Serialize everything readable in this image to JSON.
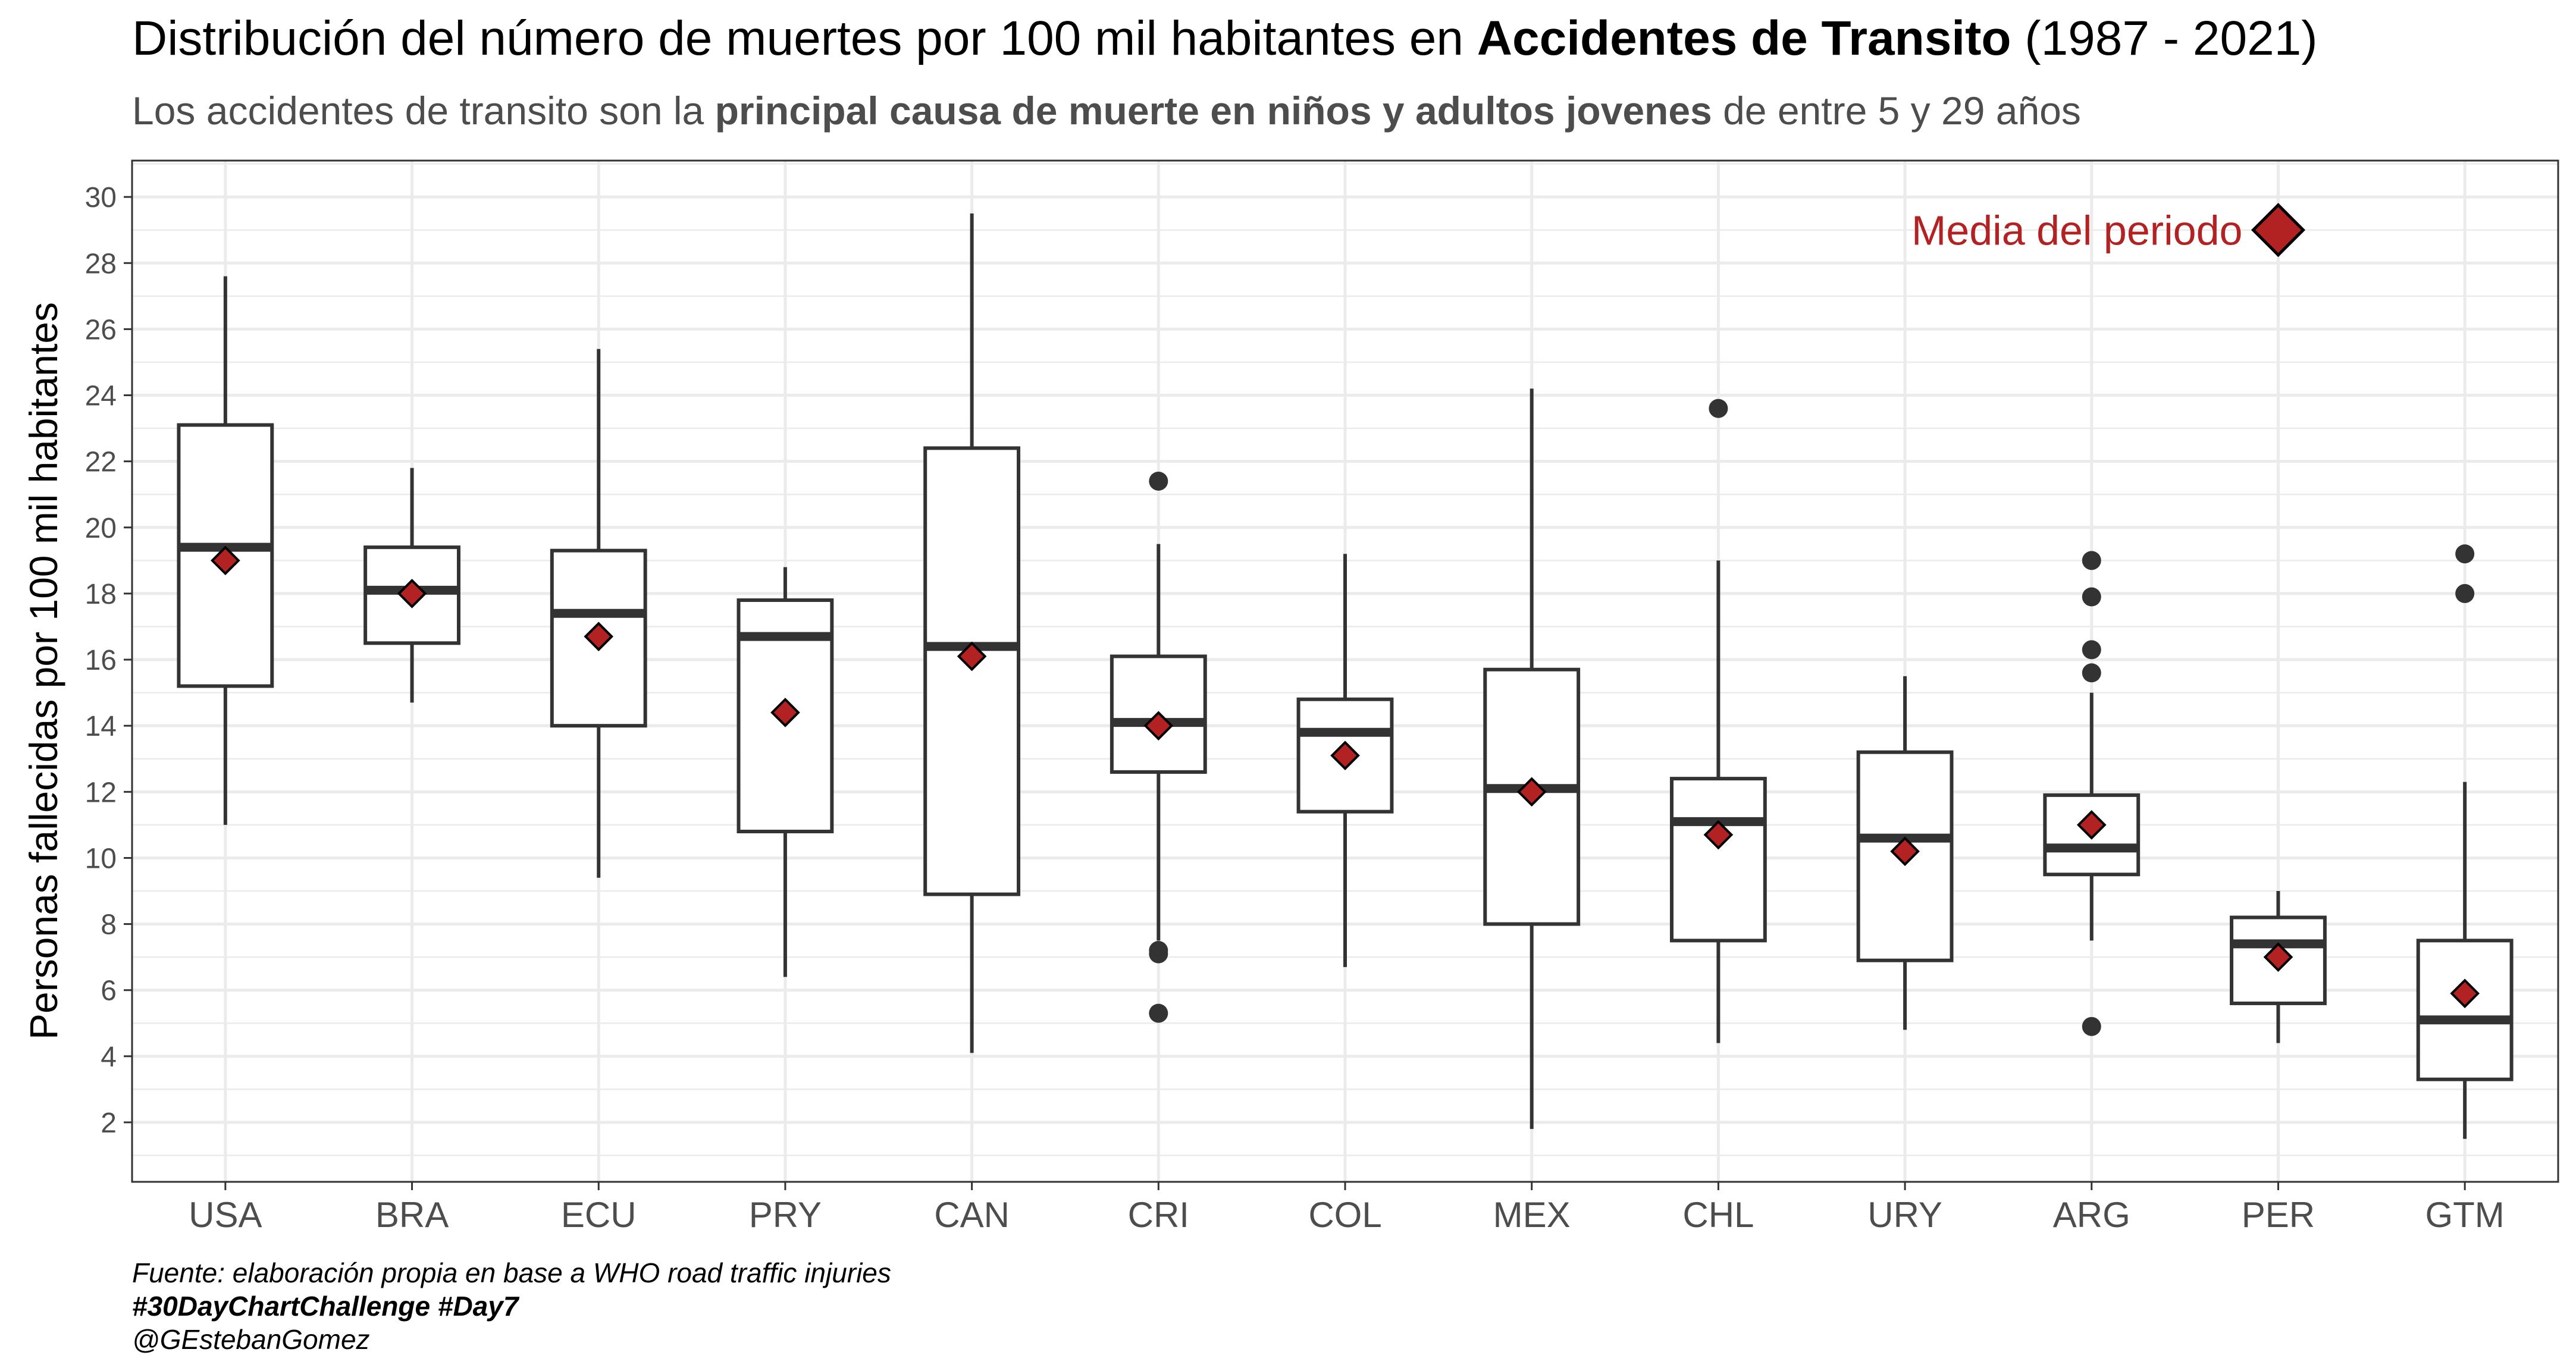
{
  "title_parts": {
    "prefix": "Distribución del número de muertes por 100 mil habitantes en ",
    "bold": "Accidentes de Transito",
    "suffix": " (1987 - 2021)"
  },
  "subtitle_parts": {
    "prefix": "Los accidentes de transito son la ",
    "bold": "principal causa de muerte en niños y adultos jovenes",
    "suffix": " de entre 5 y 29 años"
  },
  "caption": {
    "source": "Fuente: elaboración propia en base a WHO road traffic injuries",
    "tag": "#30DayChartChallenge #Day7",
    "author": "@GEstebanGomez"
  },
  "colors": {
    "mean_marker": "#b22222",
    "box_line": "#333333",
    "grid": "#ebebeb"
  },
  "chart_data": {
    "type": "boxplot",
    "title": "Distribución del número de muertes por 100 mil habitantes en Accidentes de Transito (1987 - 2021)",
    "subtitle": "Los accidentes de transito son la principal causa de muerte en niños y adultos jovenes de entre 5 y 29 años",
    "xlabel": "",
    "ylabel": "Personas fallecidas por 100 mil habitantes",
    "ylim": [
      0.2,
      31.1
    ],
    "yticks": [
      2,
      4,
      6,
      8,
      10,
      12,
      14,
      16,
      18,
      20,
      22,
      24,
      26,
      28,
      30
    ],
    "grid": true,
    "annotation": {
      "text": "Media del periodo",
      "x": "PER",
      "y": 29.0
    },
    "categories": [
      "USA",
      "BRA",
      "ECU",
      "PRY",
      "CAN",
      "CRI",
      "COL",
      "MEX",
      "CHL",
      "URY",
      "ARG",
      "PER",
      "GTM"
    ],
    "boxes": [
      {
        "name": "USA",
        "min": 11.0,
        "q1": 15.2,
        "median": 19.4,
        "q3": 23.1,
        "max": 27.6,
        "mean": 19.0,
        "outliers": []
      },
      {
        "name": "BRA",
        "min": 14.7,
        "q1": 16.5,
        "median": 18.1,
        "q3": 19.4,
        "max": 21.8,
        "mean": 18.0,
        "outliers": []
      },
      {
        "name": "ECU",
        "min": 9.4,
        "q1": 14.0,
        "median": 17.4,
        "q3": 19.3,
        "max": 25.4,
        "mean": 16.7,
        "outliers": []
      },
      {
        "name": "PRY",
        "min": 6.4,
        "q1": 10.8,
        "median": 16.7,
        "q3": 17.8,
        "max": 18.8,
        "mean": 14.4,
        "outliers": []
      },
      {
        "name": "CAN",
        "min": 4.1,
        "q1": 8.9,
        "median": 16.4,
        "q3": 22.4,
        "max": 29.5,
        "mean": 16.1,
        "outliers": []
      },
      {
        "name": "CRI",
        "min": 7.5,
        "q1": 12.6,
        "median": 14.1,
        "q3": 16.1,
        "max": 19.5,
        "mean": 14.0,
        "outliers": [
          21.4,
          7.2,
          7.1,
          5.3
        ]
      },
      {
        "name": "COL",
        "min": 6.7,
        "q1": 11.4,
        "median": 13.8,
        "q3": 14.8,
        "max": 19.2,
        "mean": 13.1,
        "outliers": []
      },
      {
        "name": "MEX",
        "min": 1.8,
        "q1": 8.0,
        "median": 12.1,
        "q3": 15.7,
        "max": 24.2,
        "mean": 12.0,
        "outliers": []
      },
      {
        "name": "CHL",
        "min": 4.4,
        "q1": 7.5,
        "median": 11.1,
        "q3": 12.4,
        "max": 19.0,
        "mean": 10.7,
        "outliers": [
          23.6
        ]
      },
      {
        "name": "URY",
        "min": 4.8,
        "q1": 6.9,
        "median": 10.6,
        "q3": 13.2,
        "max": 15.5,
        "mean": 10.2,
        "outliers": []
      },
      {
        "name": "ARG",
        "min": 7.5,
        "q1": 9.5,
        "median": 10.3,
        "q3": 11.9,
        "max": 15.0,
        "mean": 11.0,
        "outliers": [
          19.0,
          17.9,
          16.3,
          15.6,
          4.9
        ]
      },
      {
        "name": "PER",
        "min": 4.4,
        "q1": 5.6,
        "median": 7.4,
        "q3": 8.2,
        "max": 9.0,
        "mean": 7.0,
        "outliers": []
      },
      {
        "name": "GTM",
        "min": 1.5,
        "q1": 3.3,
        "median": 5.1,
        "q3": 7.5,
        "max": 12.3,
        "mean": 5.9,
        "outliers": [
          19.2,
          18.0
        ]
      }
    ]
  }
}
